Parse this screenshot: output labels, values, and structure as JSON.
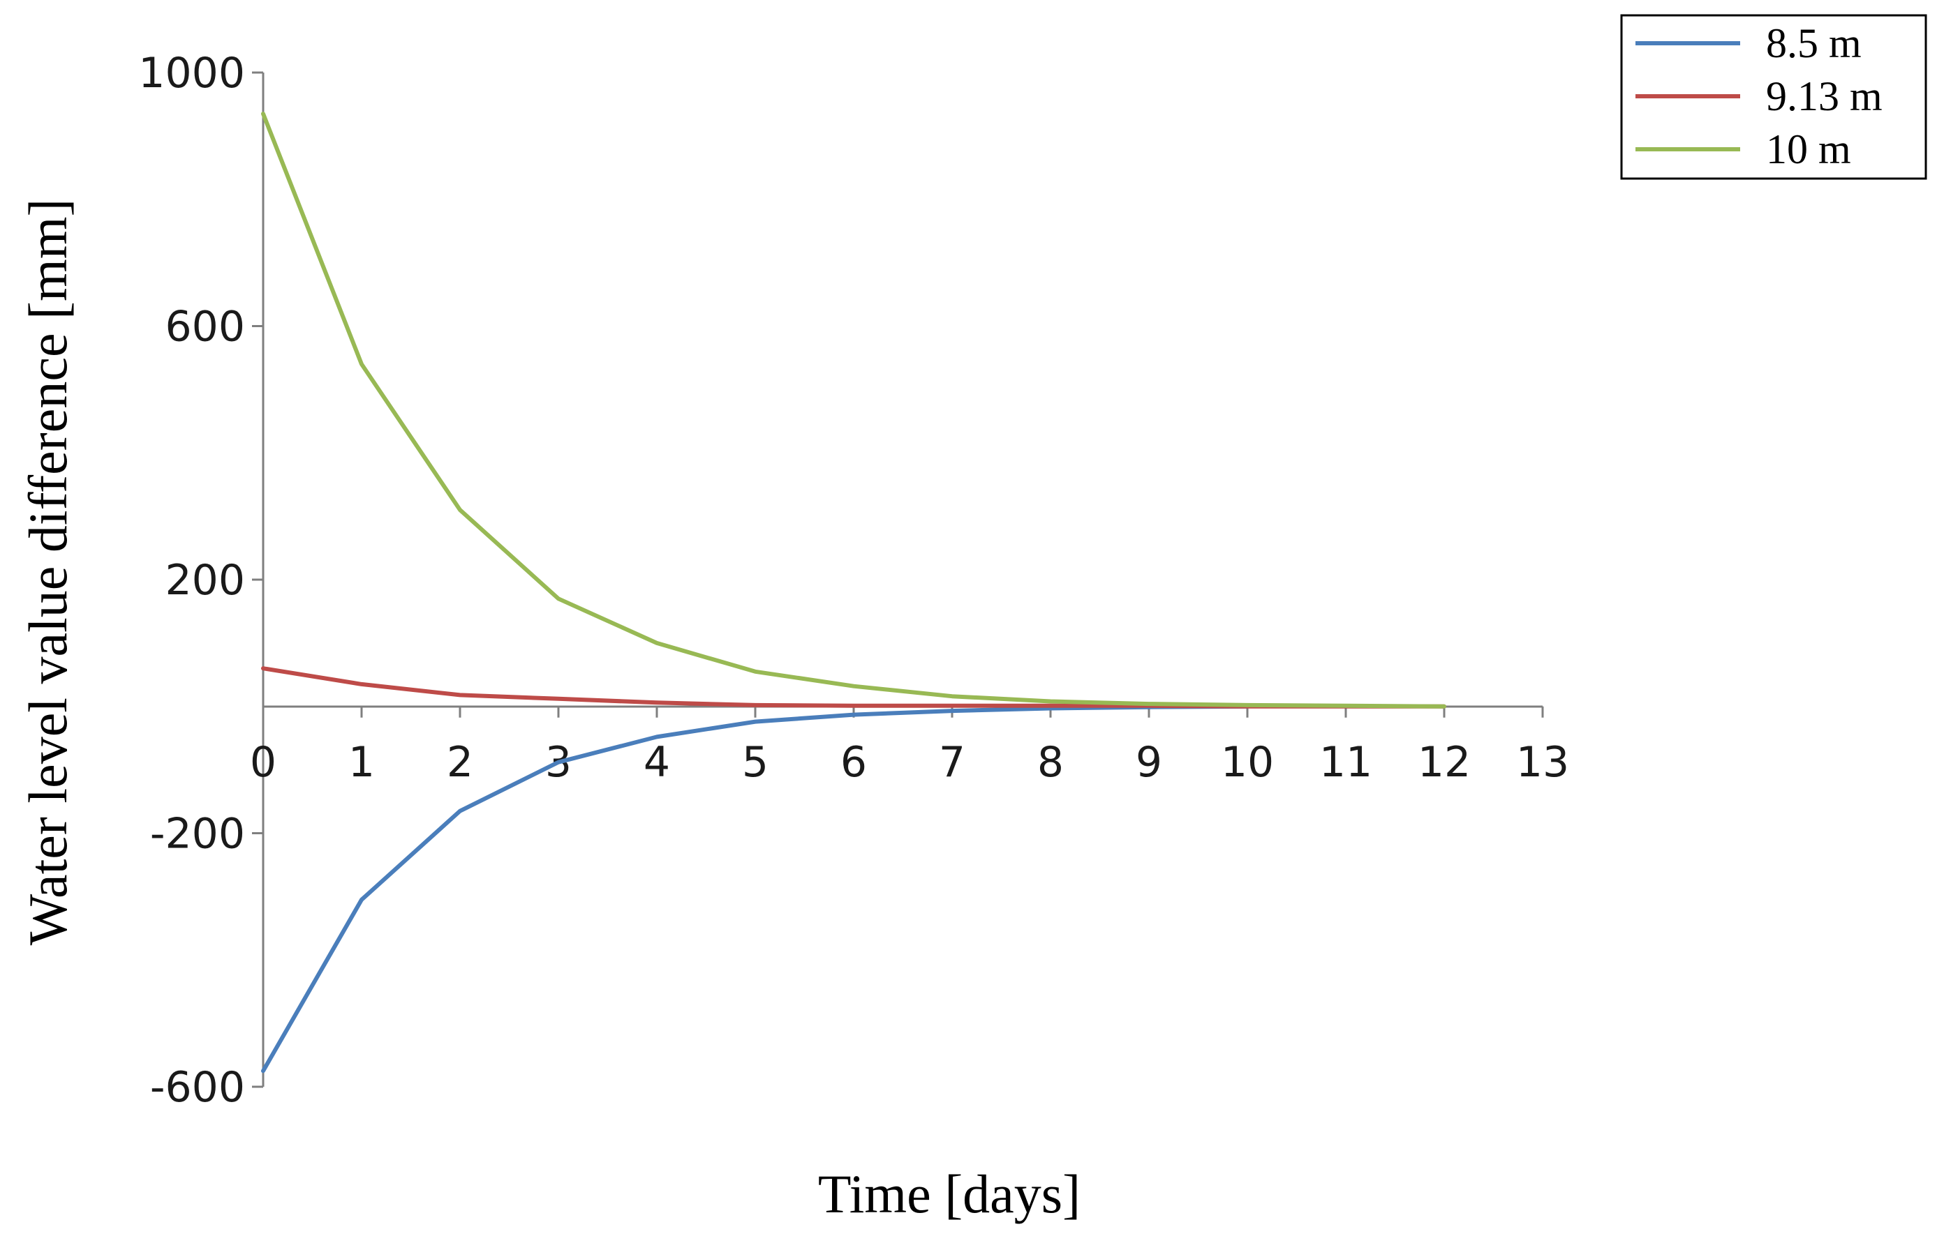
{
  "chart_data": {
    "type": "line",
    "title": "",
    "xlabel": "Time  [days]",
    "ylabel": "Water  level  value  difference  [mm]",
    "xlim": [
      0,
      13
    ],
    "ylim": [
      -600,
      1000
    ],
    "xticks": [
      0,
      1,
      2,
      3,
      4,
      5,
      6,
      7,
      8,
      9,
      10,
      11,
      12,
      13
    ],
    "yticks": [
      -600,
      -200,
      200,
      600,
      1000
    ],
    "ytick_labels": [
      "-600",
      "-200",
      "200",
      "600",
      "1000"
    ],
    "grid": false,
    "legend_position": "top-right",
    "series": [
      {
        "name": "8.5 m",
        "color": "#4a7ebb",
        "x": [
          0,
          1,
          2,
          3,
          4,
          5,
          6,
          7,
          8,
          9,
          10
        ],
        "y": [
          -575,
          -305,
          -165,
          -88,
          -48,
          -24,
          -13,
          -7,
          -3,
          -1,
          0
        ]
      },
      {
        "name": "9.13 m",
        "color": "#be4b48",
        "x": [
          0,
          1,
          2,
          3,
          4,
          5,
          6,
          7,
          8,
          9,
          10,
          11,
          12
        ],
        "y": [
          60,
          35,
          18,
          12,
          6,
          2,
          1,
          1,
          1,
          1,
          0,
          0,
          0
        ]
      },
      {
        "name": "10 m",
        "color": "#98b954",
        "x": [
          0,
          1,
          2,
          3,
          4,
          5,
          6,
          7,
          8,
          9,
          10,
          11,
          12
        ],
        "y": [
          935,
          540,
          310,
          170,
          100,
          55,
          32,
          16,
          8,
          4,
          2,
          1,
          0
        ]
      }
    ]
  }
}
